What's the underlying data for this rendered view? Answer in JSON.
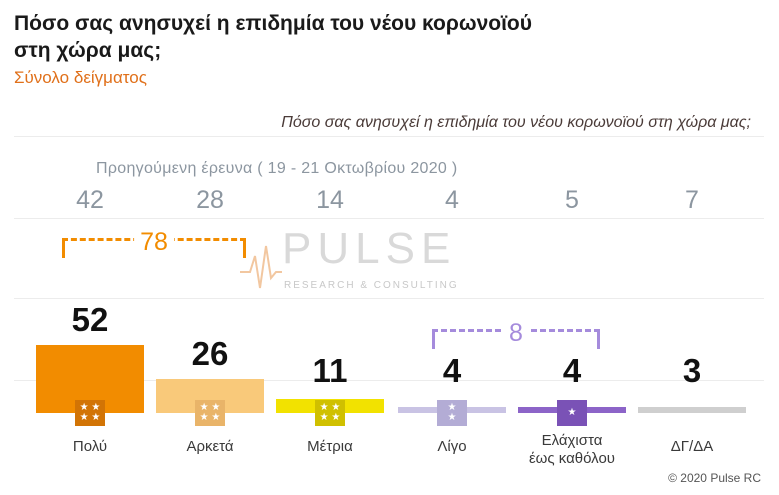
{
  "header": {
    "title": "Πόσο σας ανησυχεί η επιδημία του νέου κορωνοϊού στη χώρα μας;",
    "subtitle": "Σύνολο δείγματος",
    "question": "Πόσο σας ανησυχεί η επιδημία του νέου κορωνοϊού στη χώρα μας;"
  },
  "previous": {
    "caption": "Προηγούμενη έρευνα ( 19 - 21 Οκτωβρίου 2020 )"
  },
  "brackets": {
    "high_total": "78",
    "low_total": "8"
  },
  "logo": {
    "name": "PULSE",
    "tagline": "RESEARCH & CONSULTING"
  },
  "chart_data": {
    "type": "bar",
    "categories": [
      "Πολύ",
      "Αρκετά",
      "Μέτρια",
      "Λίγο",
      "Ελάχιστα έως καθόλου",
      "ΔΓ/ΔΑ"
    ],
    "series": [
      {
        "values": [
          52,
          26,
          11,
          4,
          4,
          3
        ]
      }
    ],
    "previous_values": [
      42,
      28,
      14,
      4,
      5,
      7
    ],
    "colors": [
      "#f28c00",
      "#f9c97a",
      "#f2e200",
      "#c9c3e4",
      "#8c64c8",
      "#cfcfcf"
    ],
    "badge_colors": [
      "#d27405",
      "#e9b469",
      "#d0c000",
      "#b3acd5",
      "#7a52b6",
      null
    ],
    "badge_icons": [
      "three-stars-icon",
      "three-stars-icon",
      "three-stars-icon",
      "two-stars-icon",
      "one-star-icon",
      null
    ]
  },
  "labels": {
    "cat0": "Πολύ",
    "cat1": "Αρκετά",
    "cat2": "Μέτρια",
    "cat3": "Λίγο",
    "cat4_line1": "Ελάχιστα",
    "cat4_line2": "έως καθόλου",
    "cat5": "ΔΓ/ΔΑ"
  },
  "footer": {
    "copyright": "© 2020 Pulse RC"
  }
}
